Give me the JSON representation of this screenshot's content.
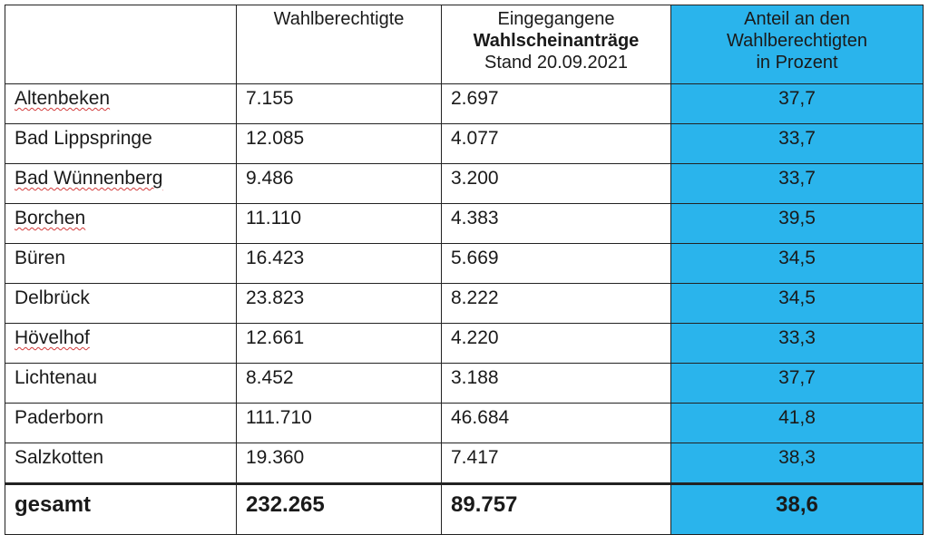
{
  "table": {
    "headers": [
      {
        "lines": [
          "",
          "",
          ""
        ]
      },
      {
        "lines": [
          "Wahlberechtigte",
          "",
          ""
        ]
      },
      {
        "lines": [
          "Eingegangene",
          "Wahlscheinanträge",
          "Stand 20.09.2021"
        ]
      },
      {
        "lines": [
          "Anteil an den",
          "Wahlberechtigten",
          "in Prozent"
        ]
      }
    ],
    "rows": [
      {
        "name": "Altenbeken",
        "eligible": "7.155",
        "applications": "2.697",
        "share": "37,7",
        "spell_flag": true
      },
      {
        "name": "Bad Lippspringe",
        "eligible": "12.085",
        "applications": "4.077",
        "share": "33,7",
        "spell_flag": false
      },
      {
        "name": "Bad Wünnenberg",
        "eligible": "9.486",
        "applications": "3.200",
        "share": "33,7",
        "spell_flag": true
      },
      {
        "name": "Borchen",
        "eligible": "11.110",
        "applications": "4.383",
        "share": "39,5",
        "spell_flag": true
      },
      {
        "name": "Büren",
        "eligible": "16.423",
        "applications": "5.669",
        "share": "34,5",
        "spell_flag": false
      },
      {
        "name": "Delbrück",
        "eligible": "23.823",
        "applications": "8.222",
        "share": "34,5",
        "spell_flag": false
      },
      {
        "name": "Hövelhof",
        "eligible": "12.661",
        "applications": "4.220",
        "share": "33,3",
        "spell_flag": true
      },
      {
        "name": "Lichtenau",
        "eligible": "8.452",
        "applications": "3.188",
        "share": "37,7",
        "spell_flag": false
      },
      {
        "name": "Paderborn",
        "eligible": "111.710",
        "applications": "46.684",
        "share": "41,8",
        "spell_flag": false
      },
      {
        "name": "Salzkotten",
        "eligible": "19.360",
        "applications": "7.417",
        "share": "38,3",
        "spell_flag": false
      }
    ],
    "total": {
      "name": "gesamt",
      "eligible": "232.265",
      "applications": "89.757",
      "share": "38,6"
    }
  },
  "colors": {
    "highlight_column": "#2ab4ec",
    "grid": "#222222",
    "spell_underline": "#d23b3b"
  }
}
